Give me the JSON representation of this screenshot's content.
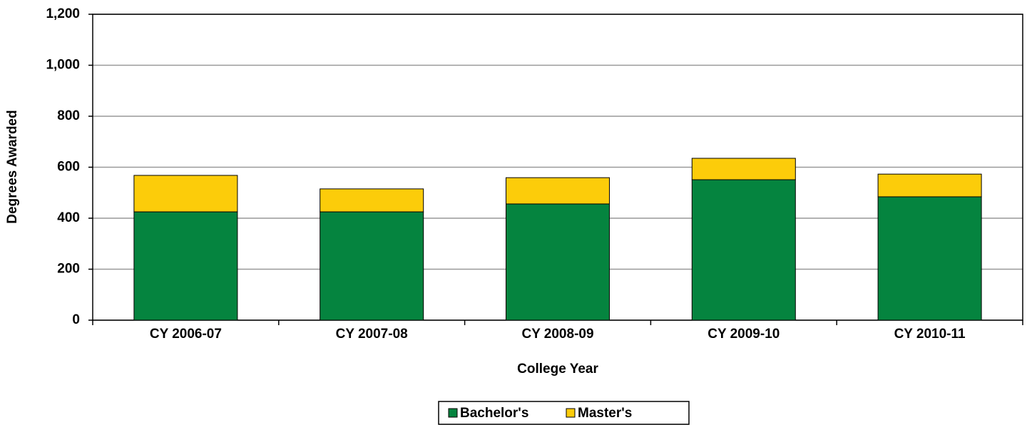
{
  "chart_data": {
    "type": "stacked_bar",
    "x_label": "College Year",
    "y_label": "Degrees Awarded",
    "categories": [
      "CY 2006-07",
      "CY 2007-08",
      "CY 2008-09",
      "CY 2009-10",
      "CY 2010-11"
    ],
    "series": [
      {
        "name": "Bachelor's",
        "color": "#05843f",
        "values": [
          425,
          425,
          456,
          551,
          484
        ]
      },
      {
        "name": "Master's",
        "color": "#fccc0a",
        "values": [
          143,
          90,
          103,
          84,
          89
        ]
      }
    ],
    "ylim": [
      0,
      1200
    ],
    "yticks": [
      0,
      200,
      400,
      600,
      800,
      {
        "value": 1000,
        "label": "1,000"
      },
      {
        "value": 1200,
        "label": "1,200"
      }
    ],
    "grid": true,
    "legend": "bottom"
  }
}
